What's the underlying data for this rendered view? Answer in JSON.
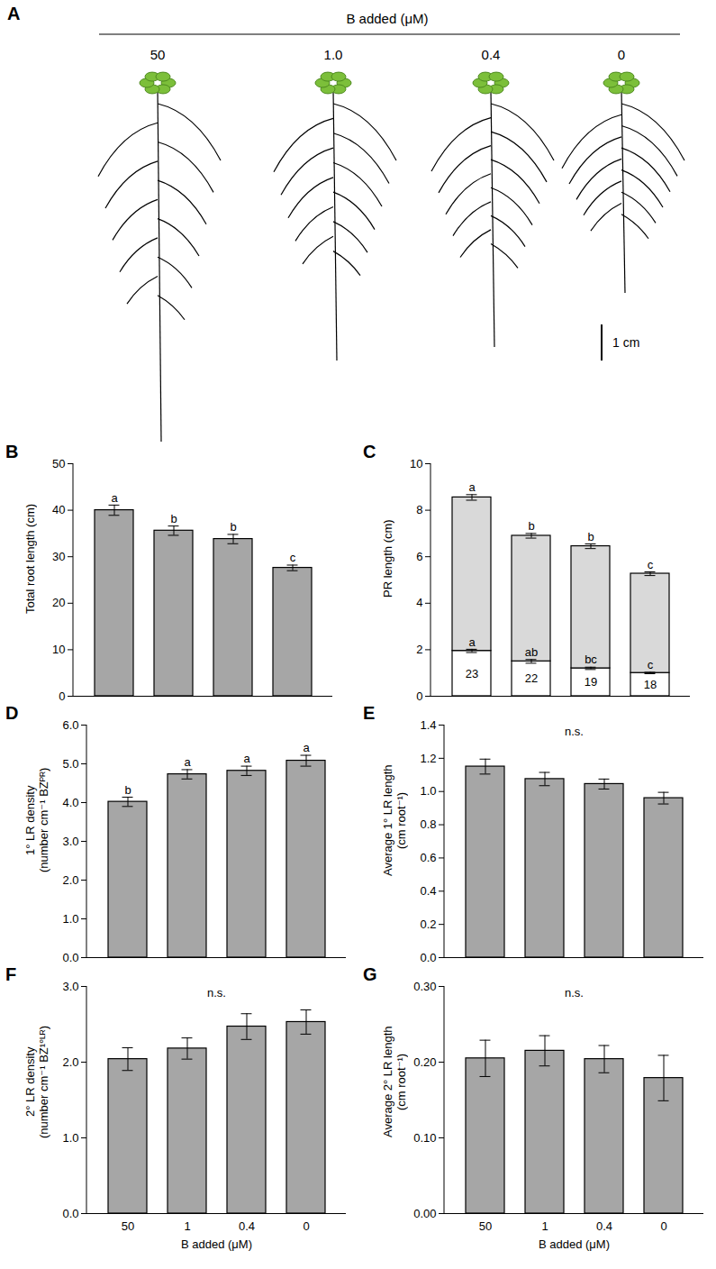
{
  "header": {
    "title": "A",
    "label": "B added (μM)",
    "treatments": [
      "50",
      "1.0",
      "0.4",
      "0"
    ],
    "scale_bar": "1 cm"
  },
  "chart_data": [
    {
      "type": "bar",
      "title": "B",
      "ylabel": [
        "Total root length (cm)"
      ],
      "categories": [
        "50",
        "1",
        "0.4",
        "0"
      ],
      "values": [
        40.0,
        35.6,
        33.8,
        27.6
      ],
      "errors": [
        1.1,
        1.0,
        1.0,
        0.6
      ],
      "letters": [
        "a",
        "b",
        "b",
        "c"
      ],
      "color": "#a6a6a6",
      "ylim": [
        0,
        50
      ],
      "yticks": [
        0,
        10,
        20,
        30,
        40,
        50
      ],
      "tick_labels": "y"
    },
    {
      "type": "bar",
      "title": "C",
      "ylabel": [
        "PR length (cm)"
      ],
      "categories": [
        "50",
        "1",
        "0.4",
        "0"
      ],
      "stacked": true,
      "series": [
        {
          "color": "#ffffff",
          "values": [
            1.95,
            1.5,
            1.2,
            1.0
          ],
          "errors": [
            0.07,
            0.08,
            0.05,
            0.03
          ],
          "letters": [
            "a",
            "ab",
            "bc",
            "c"
          ],
          "counts": [
            23,
            22,
            19,
            18
          ]
        },
        {
          "color": "#d9d9d9",
          "values": [
            6.6,
            5.4,
            5.25,
            4.27
          ],
          "errors": [
            0.12,
            0.1,
            0.1,
            0.08
          ],
          "letters": [
            "a",
            "b",
            "b",
            "c"
          ]
        }
      ],
      "ylim": [
        0,
        10
      ],
      "yticks": [
        0,
        2,
        4,
        6,
        8,
        10
      ],
      "tick_labels": "y"
    },
    {
      "type": "bar",
      "title": "D",
      "ylabel": [
        "1° LR density",
        "(number cm⁻¹ BZᴾᴿ)"
      ],
      "categories": [
        "50",
        "1",
        "0.4",
        "0"
      ],
      "values": [
        4.02,
        4.73,
        4.82,
        5.08
      ],
      "errors": [
        0.12,
        0.12,
        0.12,
        0.14
      ],
      "letters": [
        "b",
        "a",
        "a",
        "a"
      ],
      "color": "#a6a6a6",
      "ylim": [
        0,
        6
      ],
      "yticks": [
        0,
        1,
        2,
        3,
        4,
        5,
        6
      ],
      "tick_labels": "y"
    },
    {
      "type": "bar",
      "title": "E",
      "ylabel": [
        "Average 1° LR length",
        "(cm root⁻¹)"
      ],
      "categories": [
        "50",
        "1",
        "0.4",
        "0"
      ],
      "values": [
        1.15,
        1.075,
        1.045,
        0.96
      ],
      "errors": [
        0.045,
        0.04,
        0.03,
        0.035
      ],
      "annotation": "n.s.",
      "color": "#a6a6a6",
      "ylim": [
        0,
        1.4
      ],
      "yticks": [
        0,
        0.2,
        0.4,
        0.6,
        0.8,
        1,
        1.2,
        1.4
      ],
      "tick_labels": "y"
    },
    {
      "type": "bar",
      "title": "F",
      "ylabel": [
        "2° LR density",
        "(number cm⁻¹ BZ¹°ᴸᴿ)"
      ],
      "xlabel": "B added (μM)",
      "categories": [
        "50",
        "1",
        "0.4",
        "0"
      ],
      "values": [
        2.04,
        2.18,
        2.47,
        2.53
      ],
      "errors": [
        0.15,
        0.14,
        0.17,
        0.16
      ],
      "annotation": "n.s.",
      "color": "#a6a6a6",
      "ylim": [
        0,
        3
      ],
      "yticks": [
        0,
        1,
        2,
        3
      ]
    },
    {
      "type": "bar",
      "title": "G",
      "ylabel": [
        "Average 2° LR length",
        "(cm root⁻¹)"
      ],
      "xlabel": "B added (μM)",
      "categories": [
        "50",
        "1",
        "0.4",
        "0"
      ],
      "values": [
        0.205,
        0.215,
        0.204,
        0.179
      ],
      "errors": [
        0.024,
        0.02,
        0.018,
        0.03
      ],
      "annotation": "n.s.",
      "color": "#a6a6a6",
      "ylim": [
        0,
        0.3
      ],
      "yticks": [
        0,
        0.1,
        0.2,
        0.3
      ]
    }
  ]
}
